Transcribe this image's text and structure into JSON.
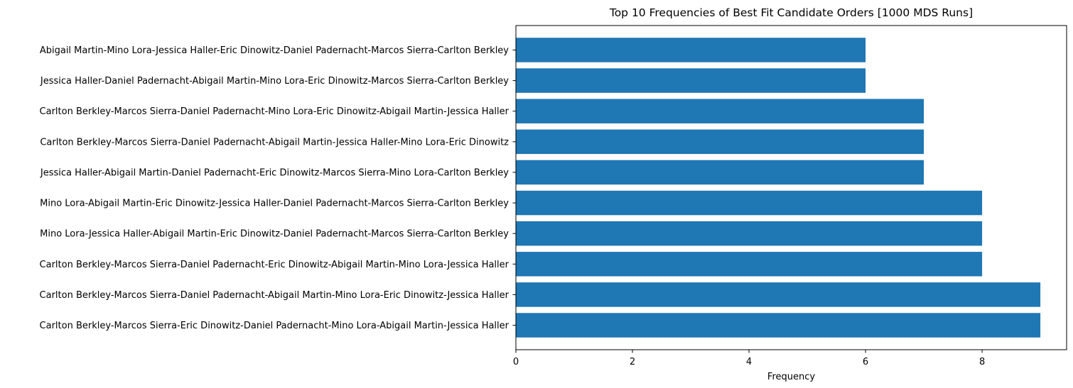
{
  "chart_data": {
    "type": "bar",
    "orientation": "horizontal",
    "title": "Top 10 Frequencies of Best Fit Candidate Orders [1000 MDS Runs]",
    "xlabel": "Frequency",
    "ylabel": "",
    "xlim": [
      0,
      9.45
    ],
    "x_ticks": [
      0,
      2,
      4,
      6,
      8
    ],
    "x_tick_labels": [
      "0",
      "2",
      "4",
      "6",
      "8"
    ],
    "grid": false,
    "bar_color": "#1f77b4",
    "categories": [
      "Carlton Berkley-Marcos Sierra-Eric Dinowitz-Daniel Padernacht-Mino Lora-Abigail Martin-Jessica Haller",
      "Carlton Berkley-Marcos Sierra-Daniel Padernacht-Abigail Martin-Mino Lora-Eric Dinowitz-Jessica Haller",
      "Carlton Berkley-Marcos Sierra-Daniel Padernacht-Eric Dinowitz-Abigail Martin-Mino Lora-Jessica Haller",
      "Mino Lora-Jessica Haller-Abigail Martin-Eric Dinowitz-Daniel Padernacht-Marcos Sierra-Carlton Berkley",
      "Mino Lora-Abigail Martin-Eric Dinowitz-Jessica Haller-Daniel Padernacht-Marcos Sierra-Carlton Berkley",
      "Jessica Haller-Abigail Martin-Daniel Padernacht-Eric Dinowitz-Marcos Sierra-Mino Lora-Carlton Berkley",
      "Carlton Berkley-Marcos Sierra-Daniel Padernacht-Abigail Martin-Jessica Haller-Mino Lora-Eric Dinowitz",
      "Carlton Berkley-Marcos Sierra-Daniel Padernacht-Mino Lora-Eric Dinowitz-Abigail Martin-Jessica Haller",
      "Jessica Haller-Daniel Padernacht-Abigail Martin-Mino Lora-Eric Dinowitz-Marcos Sierra-Carlton Berkley",
      "Abigail Martin-Mino Lora-Jessica Haller-Eric Dinowitz-Daniel Padernacht-Marcos Sierra-Carlton Berkley"
    ],
    "values": [
      9,
      9,
      8,
      8,
      8,
      7,
      7,
      7,
      6,
      6
    ]
  }
}
